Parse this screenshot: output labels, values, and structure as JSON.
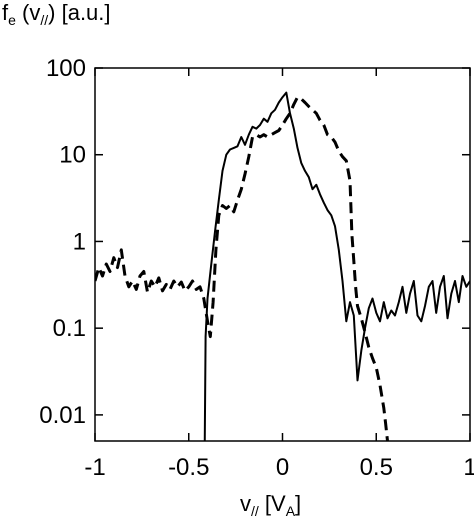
{
  "chart_data": {
    "type": "line",
    "ylabel": {
      "main": "f",
      "sub": "e",
      "arg_open": " (v",
      "arg_sub": "//",
      "arg_close": ") [a.u.]"
    },
    "xlabel": {
      "main": "v",
      "sub": "//",
      "unit_open": " [V",
      "unit_sub": "A",
      "unit_close": "]"
    },
    "x_ticks": [
      {
        "value": -1,
        "label": "-1"
      },
      {
        "value": -0.5,
        "label": "-0.5"
      },
      {
        "value": 0,
        "label": "0"
      },
      {
        "value": 0.5,
        "label": "0.5"
      },
      {
        "value": 1,
        "label": "1"
      }
    ],
    "y_ticks": [
      {
        "value": 0.01,
        "label": "0.01"
      },
      {
        "value": 0.1,
        "label": "0.1"
      },
      {
        "value": 1,
        "label": "1"
      },
      {
        "value": 10,
        "label": "10"
      },
      {
        "value": 100,
        "label": "100"
      }
    ],
    "xlim": [
      -1,
      1
    ],
    "ylim": [
      0.005,
      100
    ],
    "y_scale": "log",
    "grid": false,
    "series": [
      {
        "style": "solid",
        "color": "#000000",
        "points": [
          [
            -0.415,
            0.004
          ],
          [
            -0.41,
            0.08
          ],
          [
            -0.4,
            0.22
          ],
          [
            -0.38,
            0.55
          ],
          [
            -0.36,
            1.3
          ],
          [
            -0.34,
            3.0
          ],
          [
            -0.32,
            6.5
          ],
          [
            -0.3,
            10
          ],
          [
            -0.28,
            11.5
          ],
          [
            -0.26,
            12
          ],
          [
            -0.24,
            12.5
          ],
          [
            -0.22,
            16
          ],
          [
            -0.2,
            13
          ],
          [
            -0.18,
            17
          ],
          [
            -0.16,
            21
          ],
          [
            -0.14,
            20
          ],
          [
            -0.12,
            22
          ],
          [
            -0.1,
            26
          ],
          [
            -0.08,
            24
          ],
          [
            -0.06,
            30
          ],
          [
            -0.04,
            33
          ],
          [
            -0.02,
            40
          ],
          [
            0.0,
            46
          ],
          [
            0.02,
            52
          ],
          [
            0.04,
            30
          ],
          [
            0.06,
            20
          ],
          [
            0.08,
            12
          ],
          [
            0.1,
            8
          ],
          [
            0.12,
            6.5
          ],
          [
            0.14,
            5.5
          ],
          [
            0.16,
            4.0
          ],
          [
            0.18,
            4.5
          ],
          [
            0.2,
            3.5
          ],
          [
            0.22,
            2.8
          ],
          [
            0.24,
            2.3
          ],
          [
            0.26,
            2.0
          ],
          [
            0.28,
            1.5
          ],
          [
            0.3,
            0.8
          ],
          [
            0.32,
            0.35
          ],
          [
            0.34,
            0.12
          ],
          [
            0.36,
            0.2
          ],
          [
            0.38,
            0.14
          ],
          [
            0.4,
            0.025
          ],
          [
            0.42,
            0.055
          ],
          [
            0.44,
            0.1
          ],
          [
            0.46,
            0.17
          ],
          [
            0.48,
            0.22
          ],
          [
            0.5,
            0.15
          ],
          [
            0.52,
            0.12
          ],
          [
            0.54,
            0.2
          ],
          [
            0.56,
            0.13
          ],
          [
            0.58,
            0.16
          ],
          [
            0.6,
            0.14
          ],
          [
            0.62,
            0.2
          ],
          [
            0.64,
            0.3
          ],
          [
            0.66,
            0.15
          ],
          [
            0.68,
            0.25
          ],
          [
            0.7,
            0.35
          ],
          [
            0.72,
            0.14
          ],
          [
            0.74,
            0.12
          ],
          [
            0.76,
            0.18
          ],
          [
            0.78,
            0.3
          ],
          [
            0.8,
            0.35
          ],
          [
            0.82,
            0.15
          ],
          [
            0.84,
            0.3
          ],
          [
            0.86,
            0.4
          ],
          [
            0.88,
            0.13
          ],
          [
            0.9,
            0.25
          ],
          [
            0.92,
            0.35
          ],
          [
            0.94,
            0.2
          ],
          [
            0.96,
            0.4
          ],
          [
            0.98,
            0.3
          ],
          [
            1.0,
            0.35
          ]
        ]
      },
      {
        "style": "dashed",
        "color": "#000000",
        "points": [
          [
            -1.0,
            0.35
          ],
          [
            -0.98,
            0.5
          ],
          [
            -0.96,
            0.4
          ],
          [
            -0.94,
            0.55
          ],
          [
            -0.92,
            0.45
          ],
          [
            -0.9,
            0.65
          ],
          [
            -0.88,
            0.5
          ],
          [
            -0.86,
            0.8
          ],
          [
            -0.84,
            0.4
          ],
          [
            -0.82,
            0.3
          ],
          [
            -0.8,
            0.35
          ],
          [
            -0.78,
            0.28
          ],
          [
            -0.76,
            0.4
          ],
          [
            -0.74,
            0.45
          ],
          [
            -0.72,
            0.26
          ],
          [
            -0.7,
            0.35
          ],
          [
            -0.68,
            0.3
          ],
          [
            -0.66,
            0.38
          ],
          [
            -0.64,
            0.27
          ],
          [
            -0.62,
            0.32
          ],
          [
            -0.6,
            0.28
          ],
          [
            -0.58,
            0.35
          ],
          [
            -0.56,
            0.3
          ],
          [
            -0.54,
            0.34
          ],
          [
            -0.52,
            0.27
          ],
          [
            -0.5,
            0.3
          ],
          [
            -0.48,
            0.35
          ],
          [
            -0.46,
            0.28
          ],
          [
            -0.44,
            0.3
          ],
          [
            -0.42,
            0.22
          ],
          [
            -0.4,
            0.12
          ],
          [
            -0.385,
            0.08
          ],
          [
            -0.37,
            0.2
          ],
          [
            -0.355,
            0.8
          ],
          [
            -0.34,
            2.0
          ],
          [
            -0.32,
            2.6
          ],
          [
            -0.3,
            2.4
          ],
          [
            -0.28,
            2.6
          ],
          [
            -0.26,
            2.2
          ],
          [
            -0.24,
            3.0
          ],
          [
            -0.22,
            4.0
          ],
          [
            -0.2,
            6.0
          ],
          [
            -0.18,
            9.5
          ],
          [
            -0.16,
            16
          ],
          [
            -0.14,
            17
          ],
          [
            -0.12,
            16
          ],
          [
            -0.1,
            17
          ],
          [
            -0.08,
            16
          ],
          [
            -0.06,
            17
          ],
          [
            -0.04,
            18
          ],
          [
            -0.02,
            19
          ],
          [
            0.0,
            22
          ],
          [
            0.02,
            26
          ],
          [
            0.04,
            30
          ],
          [
            0.06,
            38
          ],
          [
            0.08,
            46
          ],
          [
            0.1,
            44
          ],
          [
            0.12,
            40
          ],
          [
            0.14,
            36
          ],
          [
            0.16,
            33
          ],
          [
            0.18,
            30
          ],
          [
            0.2,
            25
          ],
          [
            0.22,
            22
          ],
          [
            0.24,
            17
          ],
          [
            0.26,
            16
          ],
          [
            0.28,
            14
          ],
          [
            0.3,
            11
          ],
          [
            0.32,
            9.5
          ],
          [
            0.34,
            8.5
          ],
          [
            0.36,
            5.0
          ],
          [
            0.37,
            1.2
          ],
          [
            0.38,
            0.6
          ],
          [
            0.39,
            0.3
          ],
          [
            0.4,
            0.18
          ],
          [
            0.42,
            0.13
          ],
          [
            0.44,
            0.09
          ],
          [
            0.46,
            0.06
          ],
          [
            0.48,
            0.045
          ],
          [
            0.5,
            0.035
          ],
          [
            0.52,
            0.022
          ],
          [
            0.54,
            0.012
          ],
          [
            0.55,
            0.008
          ],
          [
            0.56,
            0.005
          ]
        ]
      }
    ]
  }
}
